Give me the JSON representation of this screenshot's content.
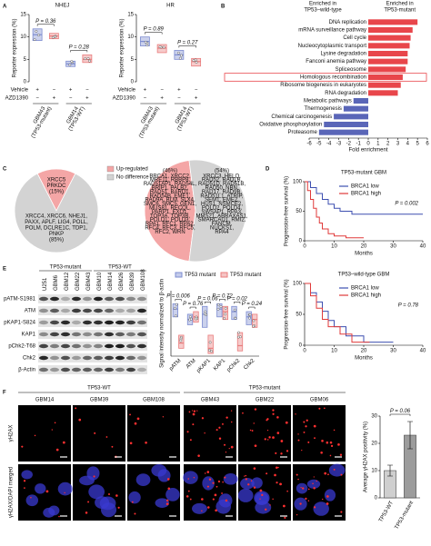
{
  "panel_labels": [
    "A",
    "B",
    "C",
    "D",
    "E",
    "F"
  ],
  "chart_data": [
    {
      "type": "box",
      "title": "NHEJ",
      "ylabel": "Reporter expression (%)",
      "ylim": [
        0,
        15
      ],
      "yticks": [
        0,
        5,
        10,
        15
      ],
      "boxes": [
        {
          "q1": 9.2,
          "median": 10.5,
          "q3": 11.8,
          "color": "#7d8cd0"
        },
        {
          "q1": 9.6,
          "median": 10.2,
          "q3": 10.8,
          "color": "#e97c7c"
        },
        {
          "q1": 3.4,
          "median": 4,
          "q3": 4.6,
          "color": "#7d8cd0"
        },
        {
          "q1": 4.3,
          "median": 5,
          "q3": 6,
          "color": "#e97c7c"
        }
      ],
      "row_labels": [
        "Vehicle",
        "AZD1390"
      ],
      "row_signs": [
        [
          "+",
          "−",
          "+",
          "−"
        ],
        [
          "−",
          "+",
          "−",
          "+"
        ]
      ],
      "groups": [
        [
          "GBM43",
          "(TP53-mutant)"
        ],
        [
          "GBM14",
          "(TP53-WT)"
        ]
      ],
      "annotations": [
        "P = 0.36",
        "P = 0.28"
      ]
    },
    {
      "type": "box",
      "title": "HR",
      "ylabel": "Reporter expression (%)",
      "ylim": [
        0,
        15
      ],
      "yticks": [
        0,
        5,
        10,
        15
      ],
      "boxes": [
        {
          "q1": 8,
          "median": 9,
          "q3": 10,
          "color": "#7d8cd0"
        },
        {
          "q1": 6.5,
          "median": 7.5,
          "q3": 8.3,
          "color": "#e97c7c"
        },
        {
          "q1": 5,
          "median": 6,
          "q3": 7,
          "color": "#7d8cd0"
        },
        {
          "q1": 3.5,
          "median": 4.5,
          "q3": 5.2,
          "color": "#e97c7c"
        }
      ],
      "row_labels": [
        "Vehicle",
        "AZD1390"
      ],
      "row_signs": [
        [
          "+",
          "−",
          "+",
          "−"
        ],
        [
          "−",
          "+",
          "−",
          "+"
        ]
      ],
      "groups": [
        [
          "GBM43",
          "(TP53-mutant)"
        ],
        [
          "GBM14",
          "(TP53-WT)"
        ]
      ],
      "annotations": [
        "P = 0.89",
        "P = 0.27"
      ]
    },
    {
      "type": "bar",
      "orientation": "horizontal",
      "xlabel": "Fold enrichment",
      "headers": [
        [
          "Enriched in",
          "TP53–wild-type"
        ],
        [
          "Enriched in",
          "TP53-mutant"
        ]
      ],
      "categories": [
        "DNA replication",
        "mRNA surveillance pathway",
        "Cell cycle",
        "Nucleocytoplasmic transport",
        "Lysine degradation",
        "Fanconi anemia pathway",
        "Spliceosome",
        "Homologous recombination",
        "Ribosome biogenesis in eukaryotes",
        "RNA degradation",
        "Metabolic pathways",
        "Thermogenesis",
        "Chemical carcinogenesis",
        "Oxidative phosphorylation",
        "Proteasome"
      ],
      "values": [
        5,
        4.5,
        4.3,
        4.2,
        4,
        4,
        3.8,
        3.5,
        3.3,
        3,
        -1.5,
        -2.5,
        -3.5,
        -4.5,
        -5
      ],
      "xlim": [
        -6,
        6
      ],
      "xticks": [
        -6,
        -5,
        -4,
        -3,
        -2,
        -1,
        0,
        1,
        2,
        3,
        4,
        5,
        6
      ],
      "positive_color": "#e8464b",
      "negative_color": "#5a66b8",
      "highlight_index": 7
    },
    {
      "type": "pie",
      "values": [
        15,
        85
      ],
      "value_labels": [
        "(15%)",
        "(85%)"
      ],
      "colors": [
        "#f4a6a6",
        "#d3d3d3"
      ],
      "slice_texts": [
        [
          "XRCC5",
          "PRKDC"
        ],
        [
          "XRCC4, XRCC6, NHEJ1,",
          "PAXX, APLF, LIG4, POLL,",
          "POLM, DCLRE1C, TDP1,",
          "PNKP"
        ]
      ],
      "legend": [
        "Up-regulated",
        "No difference"
      ]
    },
    {
      "type": "pie",
      "values": [
        46,
        54
      ],
      "value_labels": [
        "(46%)",
        "(54%)"
      ],
      "colors": [
        "#f4a6a6",
        "#d3d3d3"
      ],
      "slice_texts": [
        [
          "BRCA1, XRCC2,",
          "MRE11, RBBP8,",
          "RAD51AP1, RAD54L,",
          "BRIP1, PALB2,",
          "RAD51, BARD1,",
          "RAD54B, EME1,",
          "RAD9A, BLM, SLX4,",
          "SMC6, SMC5, GEN1,",
          "MUS81, RECQL,",
          "PARP1, EXO1,",
          "TOP3A, TOP3B,",
          "POLD1, POLD3,",
          "RPA1, RFC1, RPA2,",
          "RFC4, RFC3, RFC5,",
          "RFC2, WRN"
        ],
        [
          "XRCC3, HELQ,",
          "RAD52, RAD1B,",
          "RAD51D, RAD51B,",
          "RAD50, NBN,",
          "RAD17, RAD9B,",
          "RAD51L1, ATRIP,",
          "SEM1, EME2,",
          "HUS1, NSMCE2,",
          "POLD2, POLD4,",
          "SWSAP1, RPA3,",
          "MMS21, ABRAXAS1,",
          "SMARCAD1, RMI2,",
          "FANCM,",
          "NUCKS1,",
          "RPA4"
        ]
      ]
    },
    {
      "type": "line",
      "title": "TP53-mutant GBM",
      "xlabel": "Months",
      "ylabel": "Progression-free survival (%)",
      "xlim": [
        0,
        40
      ],
      "xticks": [
        0,
        10,
        20,
        30,
        40
      ],
      "ylim": [
        0,
        100
      ],
      "yticks": [
        0,
        50,
        100
      ],
      "series": [
        {
          "name": "BRCA1 low",
          "color": "#3d4fb0",
          "x": [
            0,
            2,
            2,
            4,
            4,
            6,
            6,
            8,
            8,
            10,
            10,
            12,
            12,
            16,
            16,
            40
          ],
          "y": [
            100,
            100,
            90,
            90,
            80,
            80,
            70,
            70,
            62,
            62,
            55,
            55,
            50,
            50,
            45,
            45
          ]
        },
        {
          "name": "BRCA1 high",
          "color": "#e03a3a",
          "x": [
            0,
            1,
            1,
            2,
            2,
            3,
            3,
            4,
            4,
            5,
            5,
            6,
            6,
            8,
            8,
            10,
            10,
            14,
            14,
            20
          ],
          "y": [
            100,
            100,
            85,
            85,
            70,
            70,
            55,
            55,
            40,
            40,
            30,
            30,
            20,
            20,
            12,
            12,
            8,
            8,
            5,
            5
          ]
        }
      ],
      "annotations": [
        "P = 0.002"
      ]
    },
    {
      "type": "line",
      "title": "TP53–wild-type GBM",
      "xlabel": "Months",
      "ylabel": "Progression-free survival (%)",
      "xlim": [
        0,
        40
      ],
      "xticks": [
        0,
        10,
        20,
        30,
        40
      ],
      "ylim": [
        0,
        100
      ],
      "yticks": [
        0,
        50,
        100
      ],
      "series": [
        {
          "name": "BRCA1 low",
          "color": "#3d4fb0",
          "x": [
            0,
            2,
            2,
            4,
            4,
            6,
            6,
            8,
            8,
            10,
            10,
            14,
            14,
            20,
            20,
            30
          ],
          "y": [
            100,
            100,
            85,
            85,
            70,
            70,
            55,
            55,
            40,
            40,
            30,
            30,
            15,
            15,
            5,
            5
          ]
        },
        {
          "name": "BRCA1 high",
          "color": "#e03a3a",
          "x": [
            0,
            2,
            2,
            4,
            4,
            6,
            6,
            8,
            8,
            12,
            12,
            16,
            16,
            22
          ],
          "y": [
            100,
            100,
            80,
            80,
            60,
            60,
            42,
            42,
            30,
            30,
            18,
            18,
            5,
            5
          ]
        }
      ],
      "annotations": [
        "P = 0.78"
      ]
    },
    {
      "type": "box",
      "ylabel": "Signal intensity normalized to β-actin",
      "ylim": [
        0,
        2.5
      ],
      "categories": [
        "pATM",
        "ATM",
        "pKAP1",
        "KAP1",
        "pChk2",
        "Chk2"
      ],
      "series": [
        {
          "name": "TP53 mutant",
          "color": "#7d8cd0",
          "q1": [
            1.5,
            1.2,
            1.1,
            1.5,
            1.4,
            1.2
          ],
          "median": [
            1.8,
            1.4,
            1.6,
            1.8,
            1.7,
            1.5
          ],
          "q3": [
            2.0,
            1.6,
            1.9,
            2.0,
            1.9,
            1.7
          ]
        },
        {
          "name": "TP53 mutant",
          "color": "#e97c7c",
          "q1": [
            0.3,
            1.3,
            0.1,
            1.4,
            0.2,
            1.1
          ],
          "median": [
            0.5,
            1.5,
            0.3,
            1.7,
            0.4,
            1.4
          ],
          "q3": [
            0.8,
            1.7,
            0.8,
            1.9,
            0.9,
            1.6
          ]
        }
      ],
      "annotations": [
        "P = 0.006",
        "P = 0.76",
        "P = 0.06",
        "P = 0.72",
        "P = 0.02",
        "P = 0.24"
      ]
    },
    {
      "type": "bar",
      "ylabel": "Average γH2AX positivity (%)",
      "categories": [
        "TP53-WT",
        "TP53-mutant"
      ],
      "values": [
        10,
        23
      ],
      "errors": [
        2,
        5
      ],
      "colors": [
        "#cfcfcf",
        "#9c9c9c"
      ],
      "ylim": [
        0,
        30
      ],
      "yticks": [
        0,
        10,
        20,
        30
      ],
      "annotations": [
        "P = 0.06"
      ]
    }
  ],
  "blot": {
    "groups": [
      "TP53-mutant",
      "TP53-WT"
    ],
    "lanes": [
      "U251",
      "GBM6",
      "GBM12",
      "GBM22",
      "GBM43",
      "GBM10",
      "GBM14",
      "GBM26",
      "GBM39",
      "GBM108"
    ],
    "rows": [
      "pATM-S1981",
      "ATM",
      "pKAP1-S824",
      "KAP1",
      "pChk2-T68",
      "Chk2",
      "β-Actin"
    ]
  },
  "microscopy": {
    "groups": [
      {
        "label": "TP53-WT",
        "samples": [
          "GBM14",
          "GBM39",
          "GBM108"
        ]
      },
      {
        "label": "TP53-mutant",
        "samples": [
          "GBM43",
          "GBM22",
          "GBM06"
        ]
      }
    ],
    "row_labels": [
      "γH2AX",
      "γH2AX/DAPI merged"
    ]
  }
}
